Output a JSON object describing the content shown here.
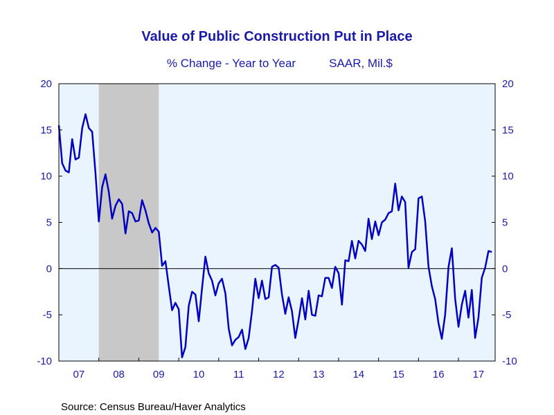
{
  "chart_data": {
    "type": "line",
    "title": "Value of Public Construction Put in Place",
    "subtitle_left": "% Change - Year to Year",
    "subtitle_right": "SAAR, Mil.$",
    "source": "Source:  Census Bureau/Haver Analytics",
    "ylim": [
      -10,
      20
    ],
    "yticks": [
      20,
      15,
      10,
      5,
      0,
      -5,
      -10
    ],
    "ytick_labels_left": [
      "20",
      "15",
      "10",
      "5",
      "0",
      "-5",
      "-10"
    ],
    "ytick_labels_right": [
      "20",
      "15",
      "10",
      "5",
      "0",
      "-5",
      "-10"
    ],
    "xlim": [
      2007.0,
      2017.917
    ],
    "xticks": [
      "07",
      "08",
      "09",
      "10",
      "11",
      "12",
      "13",
      "14",
      "15",
      "16",
      "17"
    ],
    "grid": false,
    "zero_line": true,
    "recession_shading": [
      [
        2008.0,
        2009.5
      ]
    ],
    "colors": {
      "line": "#0000c0",
      "plot_background": "#eaf4ff",
      "recession": "#c8c8c8",
      "text": "#1a1aa8",
      "frame": "#000000"
    },
    "series": [
      {
        "start": "2007-01",
        "frequency": "monthly",
        "values": [
          15.5,
          11.4,
          10.6,
          10.4,
          14.0,
          11.8,
          12.0,
          15.2,
          16.7,
          15.2,
          14.8,
          10.3,
          5.1,
          8.8,
          10.2,
          8.3,
          5.4,
          6.8,
          7.5,
          7.0,
          3.8,
          6.2,
          6.0,
          5.1,
          5.2,
          7.4,
          6.3,
          4.9,
          3.9,
          4.4,
          4.0,
          0.3,
          0.8,
          -1.9,
          -4.5,
          -3.7,
          -4.4,
          -9.6,
          -8.5,
          -4.0,
          -2.5,
          -2.8,
          -5.7,
          -2.1,
          1.3,
          -0.5,
          -1.3,
          -2.9,
          -1.6,
          -1.1,
          -2.7,
          -6.5,
          -8.3,
          -7.7,
          -7.4,
          -6.6,
          -8.7,
          -7.5,
          -4.6,
          -1.1,
          -3.2,
          -1.3,
          -3.3,
          -3.1,
          0.2,
          0.4,
          0.1,
          -2.8,
          -4.9,
          -3.1,
          -4.6,
          -7.5,
          -5.5,
          -3.2,
          -5.5,
          -2.4,
          -5.0,
          -5.1,
          -2.9,
          -3.0,
          -1.0,
          -1.0,
          -2.1,
          0.2,
          -0.5,
          -3.9,
          0.9,
          0.8,
          3.0,
          1.1,
          3.0,
          2.6,
          1.9,
          5.4,
          3.2,
          5.1,
          3.6,
          5.0,
          5.3,
          6.0,
          6.2,
          9.2,
          6.3,
          7.8,
          7.2,
          0.1,
          1.8,
          2.1,
          7.6,
          7.8,
          5.1,
          0.2,
          -1.9,
          -3.3,
          -5.9,
          -7.6,
          -5.0,
          0.2,
          2.2,
          -3.3,
          -6.3,
          -3.9,
          -2.4,
          -5.3,
          -2.3,
          -7.5,
          -5.3,
          -1.0,
          0.1,
          1.9,
          1.8
        ]
      }
    ]
  }
}
